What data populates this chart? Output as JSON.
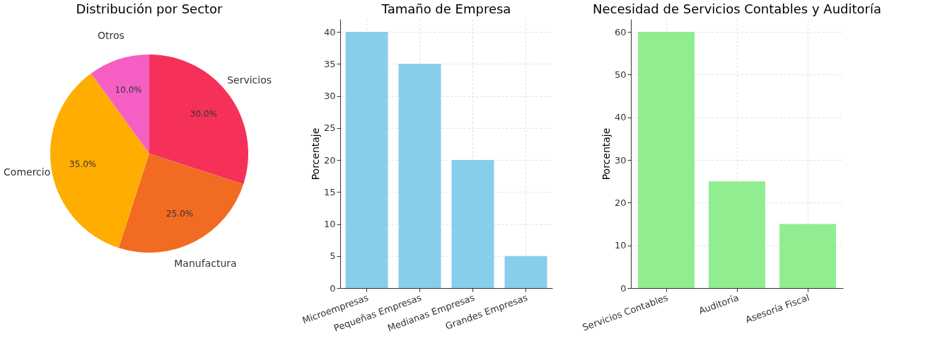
{
  "chart_data": [
    {
      "type": "pie",
      "title": "Distribución por Sector",
      "categories": [
        "Servicios",
        "Manufactura",
        "Comercio",
        "Otros"
      ],
      "values": [
        30,
        25,
        35,
        10
      ],
      "colors": [
        "#f5315a",
        "#f26b22",
        "#ffad00",
        "#f55fc4"
      ],
      "value_labels": [
        "30.0%",
        "25.0%",
        "35.0%",
        "10.0%"
      ]
    },
    {
      "type": "bar",
      "title": "Tamaño de Empresa",
      "ylabel": "Porcentaje",
      "categories": [
        "Microempresas",
        "Pequeñas Empresas",
        "Medianas Empresas",
        "Grandes Empresas"
      ],
      "series": [
        {
          "color": "#87ceeb",
          "values": [
            40,
            35,
            20,
            5
          ]
        }
      ],
      "ylim": [
        0,
        42
      ],
      "yticks": [
        0,
        5,
        10,
        15,
        20,
        25,
        30,
        35,
        40
      ],
      "grid": true
    },
    {
      "type": "bar",
      "title": "Necesidad de Servicios Contables y Auditoría",
      "ylabel": "Porcentaje",
      "categories": [
        "Servicios Contables",
        "Auditoría",
        "Asesoría Fiscal"
      ],
      "series": [
        {
          "color": "#90ee90",
          "values": [
            60,
            25,
            15
          ]
        }
      ],
      "ylim": [
        0,
        63
      ],
      "yticks": [
        0,
        10,
        20,
        30,
        40,
        50,
        60
      ],
      "grid": true
    }
  ]
}
